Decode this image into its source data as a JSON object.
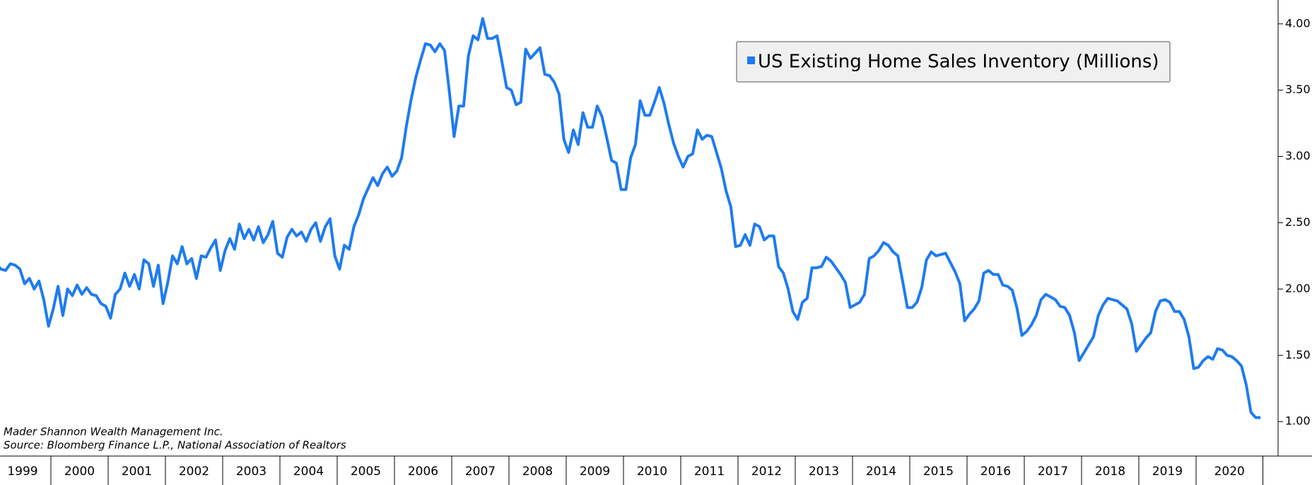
{
  "chart_data": {
    "type": "line",
    "notes": [
      "Mader Shannon Wealth Management Inc.",
      "Source: Bloomberg Finance L.P., National Association of Realtors"
    ],
    "categories": [
      "1999",
      null,
      null,
      null,
      null,
      null,
      null,
      null,
      null,
      null,
      null,
      null,
      "2000",
      null,
      null,
      null,
      null,
      null,
      null,
      null,
      null,
      null,
      null,
      null,
      "2001",
      null,
      null,
      null,
      null,
      null,
      null,
      null,
      null,
      null,
      null,
      null,
      "2002",
      null,
      null,
      null,
      null,
      null,
      null,
      null,
      null,
      null,
      null,
      null,
      "2003",
      null,
      null,
      null,
      null,
      null,
      null,
      null,
      null,
      null,
      null,
      null,
      "2004",
      null,
      null,
      null,
      null,
      null,
      null,
      null,
      null,
      null,
      null,
      null,
      "2005",
      null,
      null,
      null,
      null,
      null,
      null,
      null,
      null,
      null,
      null,
      null,
      "2006",
      null,
      null,
      null,
      null,
      null,
      null,
      null,
      null,
      null,
      null,
      null,
      "2007",
      null,
      null,
      null,
      null,
      null,
      null,
      null,
      null,
      null,
      null,
      null,
      "2008",
      null,
      null,
      null,
      null,
      null,
      null,
      null,
      null,
      null,
      null,
      null,
      "2009",
      null,
      null,
      null,
      null,
      null,
      null,
      null,
      null,
      null,
      null,
      null,
      "2010",
      null,
      null,
      null,
      null,
      null,
      null,
      null,
      null,
      null,
      null,
      null,
      "2011",
      null,
      null,
      null,
      null,
      null,
      null,
      null,
      null,
      null,
      null,
      null,
      "2012",
      null,
      null,
      null,
      null,
      null,
      null,
      null,
      null,
      null,
      null,
      null,
      "2013",
      null,
      null,
      null,
      null,
      null,
      null,
      null,
      null,
      null,
      null,
      null,
      "2014",
      null,
      null,
      null,
      null,
      null,
      null,
      null,
      null,
      null,
      null,
      null,
      "2015",
      null,
      null,
      null,
      null,
      null,
      null,
      null,
      null,
      null,
      null,
      null,
      "2016",
      null,
      null,
      null,
      null,
      null,
      null,
      null,
      null,
      null,
      null,
      null,
      "2017",
      null,
      null,
      null,
      null,
      null,
      null,
      null,
      null,
      null,
      null,
      null,
      "2018",
      null,
      null,
      null,
      null,
      null,
      null,
      null,
      null,
      null,
      null,
      null,
      "2019",
      null,
      null,
      null,
      null,
      null,
      null,
      null,
      null,
      null,
      null,
      null,
      "2020",
      null,
      null,
      null,
      null,
      null,
      null,
      null,
      null,
      null,
      null,
      null,
      null,
      null
    ],
    "series": [
      {
        "name": "US Existing Home Sales Inventory (Millions)",
        "color": "#1f7bef",
        "values": [
          2.2,
          2.15,
          2.14,
          2.19,
          2.18,
          2.15,
          2.04,
          2.08,
          2.0,
          2.06,
          1.92,
          1.72,
          1.85,
          2.02,
          1.8,
          2.0,
          1.95,
          2.03,
          1.96,
          2.01,
          1.96,
          1.95,
          1.89,
          1.87,
          1.78,
          1.96,
          2.0,
          2.12,
          2.02,
          2.11,
          2.0,
          2.22,
          2.19,
          2.02,
          2.18,
          1.89,
          2.05,
          2.25,
          2.19,
          2.32,
          2.19,
          2.23,
          2.08,
          2.25,
          2.24,
          2.31,
          2.37,
          2.14,
          2.29,
          2.38,
          2.3,
          2.49,
          2.38,
          2.45,
          2.37,
          2.47,
          2.35,
          2.41,
          2.51,
          2.27,
          2.24,
          2.39,
          2.45,
          2.4,
          2.43,
          2.36,
          2.45,
          2.5,
          2.36,
          2.47,
          2.53,
          2.25,
          2.15,
          2.33,
          2.3,
          2.47,
          2.56,
          2.68,
          2.76,
          2.84,
          2.78,
          2.87,
          2.92,
          2.85,
          2.89,
          2.99,
          3.23,
          3.43,
          3.6,
          3.73,
          3.85,
          3.84,
          3.79,
          3.85,
          3.8,
          3.49,
          3.15,
          3.38,
          3.38,
          3.76,
          3.91,
          3.88,
          4.04,
          3.89,
          3.89,
          3.91,
          3.72,
          3.52,
          3.5,
          3.39,
          3.41,
          3.81,
          3.74,
          3.78,
          3.82,
          3.62,
          3.61,
          3.56,
          3.47,
          3.13,
          3.03,
          3.2,
          3.09,
          3.33,
          3.22,
          3.22,
          3.38,
          3.3,
          3.14,
          2.97,
          2.95,
          2.75,
          2.75,
          2.99,
          3.09,
          3.42,
          3.31,
          3.31,
          3.41,
          3.52,
          3.4,
          3.24,
          3.1,
          3.0,
          2.92,
          3.0,
          3.02,
          3.2,
          3.13,
          3.16,
          3.15,
          3.03,
          2.91,
          2.74,
          2.62,
          2.32,
          2.33,
          2.41,
          2.33,
          2.49,
          2.47,
          2.37,
          2.4,
          2.4,
          2.17,
          2.12,
          2.0,
          1.83,
          1.77,
          1.9,
          1.93,
          2.16,
          2.16,
          2.17,
          2.24,
          2.21,
          2.16,
          2.11,
          2.05,
          1.86,
          1.88,
          1.9,
          1.96,
          2.23,
          2.25,
          2.29,
          2.35,
          2.33,
          2.28,
          2.25,
          2.06,
          1.86,
          1.86,
          1.9,
          2.01,
          2.22,
          2.28,
          2.25,
          2.26,
          2.27,
          2.2,
          2.13,
          2.04,
          1.76,
          1.81,
          1.85,
          1.91,
          2.12,
          2.14,
          2.11,
          2.11,
          2.03,
          2.02,
          1.99,
          1.85,
          1.65,
          1.68,
          1.73,
          1.8,
          1.92,
          1.96,
          1.94,
          1.92,
          1.87,
          1.86,
          1.8,
          1.67,
          1.46,
          1.52,
          1.58,
          1.64,
          1.8,
          1.88,
          1.93,
          1.92,
          1.91,
          1.88,
          1.85,
          1.74,
          1.53,
          1.58,
          1.63,
          1.67,
          1.83,
          1.91,
          1.92,
          1.9,
          1.83,
          1.83,
          1.77,
          1.64,
          1.4,
          1.41,
          1.46,
          1.49,
          1.47,
          1.55,
          1.54,
          1.5,
          1.49,
          1.46,
          1.42,
          1.28,
          1.07,
          1.03,
          1.03
        ]
      }
    ],
    "ylim": [
      0.74,
      4.18
    ],
    "yticks": [
      {
        "value": 1,
        "label": "1.00"
      },
      {
        "value": 1.5,
        "label": "1.50"
      },
      {
        "value": 2,
        "label": "2.00"
      },
      {
        "value": 2.5,
        "label": "2.50"
      },
      {
        "value": 3,
        "label": "3.00"
      },
      {
        "value": 3.5,
        "label": "3.50"
      },
      {
        "value": 4,
        "label": "4.00"
      }
    ],
    "legend": "top-right"
  }
}
